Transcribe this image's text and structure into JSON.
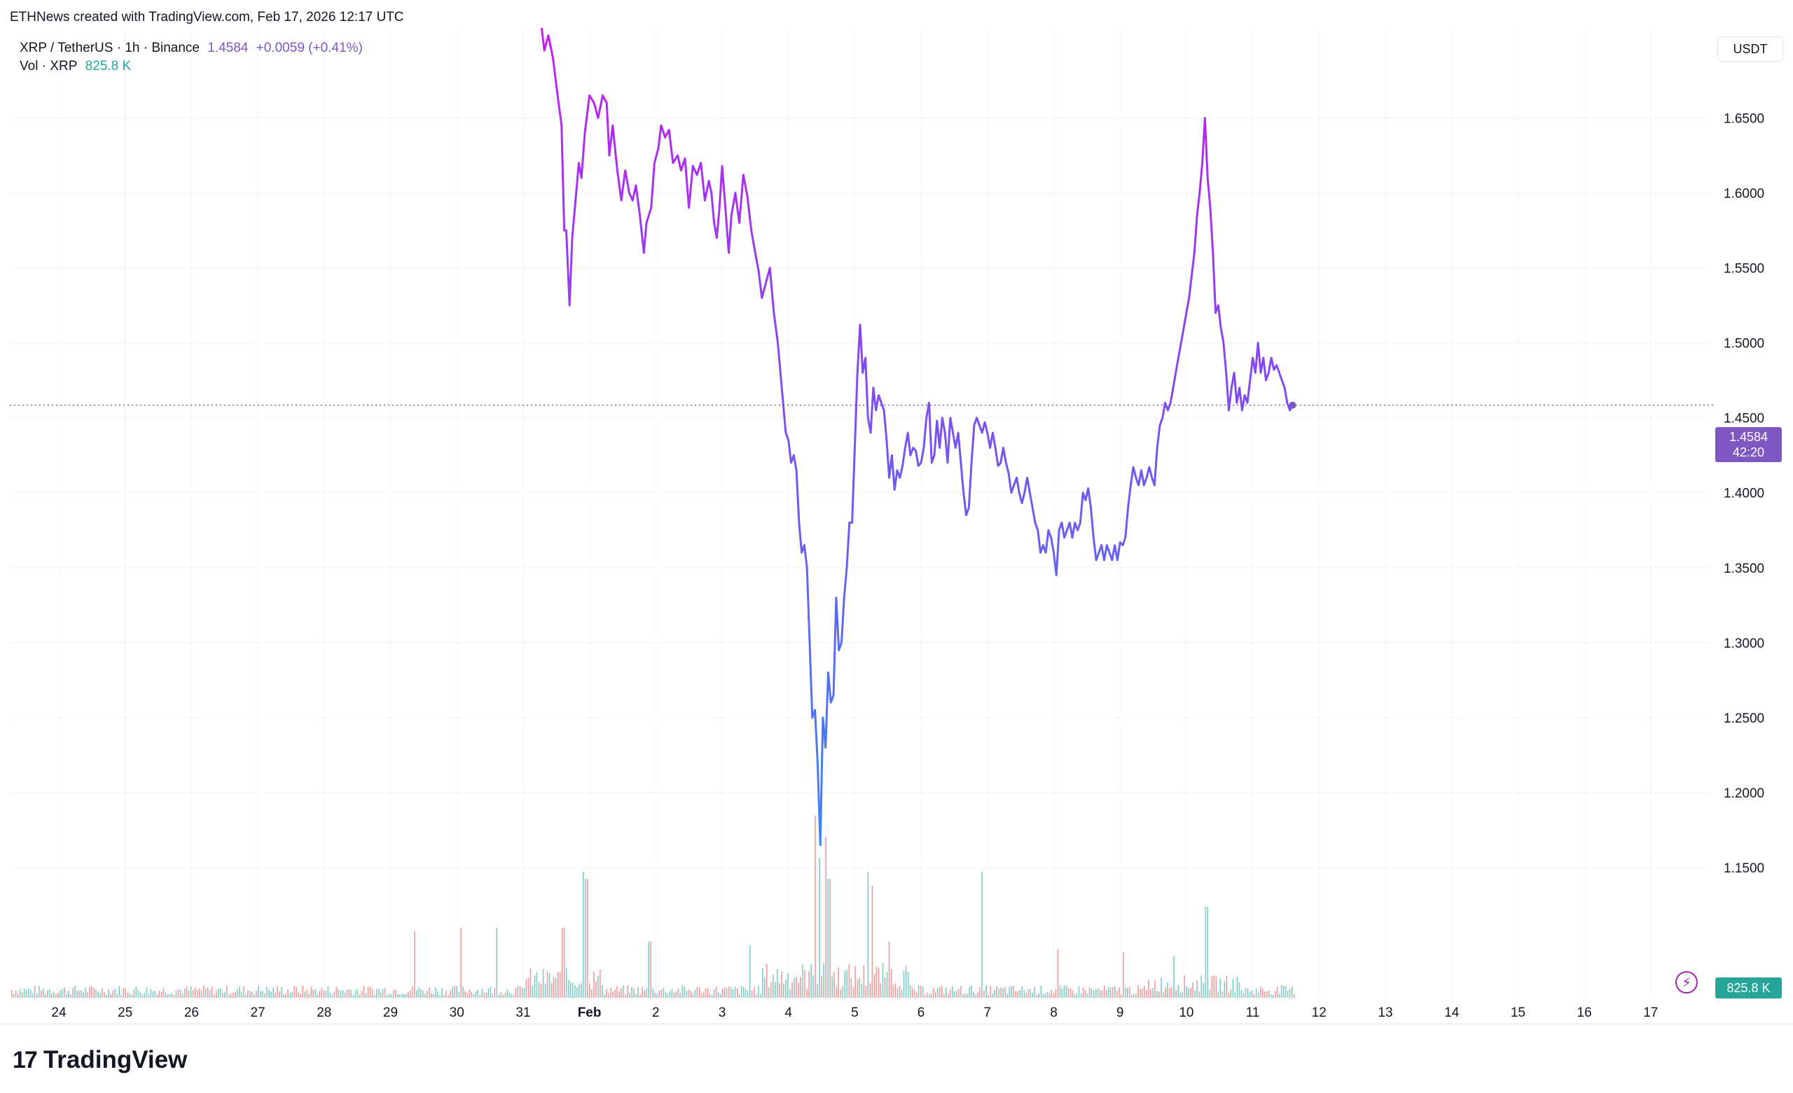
{
  "header": {
    "credit": "ETHNews created with TradingView.com, Feb 17, 2026 12:17 UTC",
    "symbol": "XRP / TetherUS · 1h · Binance",
    "last_price": "1.4584",
    "change": "+0.0059 (+0.41%)",
    "vol_label": "Vol · XRP",
    "vol_value": "825.8 K"
  },
  "price_axis": {
    "unit": "USDT",
    "current_price": "1.4584",
    "countdown": "42:20",
    "volume_tag": "825.8 K"
  },
  "brand": {
    "logo": "17",
    "name": "TradingView"
  },
  "icons": {
    "alert": "lightning-icon",
    "logo": "tradingview-logo-icon"
  },
  "colors": {
    "line_top": "#c51cf2",
    "line_bottom": "#2f8ef2",
    "line_mid": "#7b50f0",
    "vol_up": "#26a69a",
    "vol_down": "#ef5350",
    "tag": "#7e57c2"
  },
  "chart_data": {
    "type": "line",
    "title": "XRP / TetherUS · 1h · Binance",
    "ylabel": "USDT",
    "ylim": [
      1.1,
      1.71
    ],
    "yticks": [
      "1.1500",
      "1.2000",
      "1.2500",
      "1.3000",
      "1.3500",
      "1.4000",
      "1.4500",
      "1.5000",
      "1.5500",
      "1.6000",
      "1.6500"
    ],
    "xticks": [
      "24",
      "25",
      "26",
      "27",
      "28",
      "29",
      "30",
      "31",
      "Feb",
      "2",
      "3",
      "4",
      "5",
      "6",
      "7",
      "8",
      "9",
      "10",
      "11",
      "12",
      "13",
      "14",
      "15",
      "16",
      "17"
    ],
    "grid": true,
    "current_price_line": 1.4584,
    "x_unit": "days from Jan 24 label",
    "series": [
      {
        "values": [
          [
            7.28,
            1.71
          ],
          [
            7.32,
            1.695
          ],
          [
            7.38,
            1.705
          ],
          [
            7.45,
            1.69
          ],
          [
            7.52,
            1.665
          ],
          [
            7.58,
            1.645
          ],
          [
            7.62,
            1.575
          ],
          [
            7.65,
            1.575
          ],
          [
            7.7,
            1.525
          ],
          [
            7.74,
            1.57
          ],
          [
            7.78,
            1.59
          ],
          [
            7.84,
            1.62
          ],
          [
            7.88,
            1.61
          ],
          [
            7.93,
            1.64
          ],
          [
            8.0,
            1.665
          ],
          [
            8.07,
            1.66
          ],
          [
            8.13,
            1.65
          ],
          [
            8.2,
            1.665
          ],
          [
            8.26,
            1.66
          ],
          [
            8.3,
            1.625
          ],
          [
            8.35,
            1.645
          ],
          [
            8.42,
            1.615
          ],
          [
            8.48,
            1.595
          ],
          [
            8.54,
            1.615
          ],
          [
            8.6,
            1.6
          ],
          [
            8.65,
            1.595
          ],
          [
            8.7,
            1.605
          ],
          [
            8.76,
            1.585
          ],
          [
            8.82,
            1.56
          ],
          [
            8.86,
            1.58
          ],
          [
            8.93,
            1.59
          ],
          [
            8.98,
            1.62
          ],
          [
            9.04,
            1.63
          ],
          [
            9.08,
            1.645
          ],
          [
            9.14,
            1.637
          ],
          [
            9.2,
            1.642
          ],
          [
            9.26,
            1.62
          ],
          [
            9.33,
            1.625
          ],
          [
            9.38,
            1.615
          ],
          [
            9.44,
            1.623
          ],
          [
            9.5,
            1.59
          ],
          [
            9.56,
            1.618
          ],
          [
            9.62,
            1.612
          ],
          [
            9.68,
            1.62
          ],
          [
            9.74,
            1.595
          ],
          [
            9.8,
            1.608
          ],
          [
            9.84,
            1.6
          ],
          [
            9.88,
            1.58
          ],
          [
            9.92,
            1.57
          ],
          [
            9.96,
            1.59
          ],
          [
            10.0,
            1.618
          ],
          [
            10.05,
            1.59
          ],
          [
            10.1,
            1.56
          ],
          [
            10.14,
            1.585
          ],
          [
            10.2,
            1.6
          ],
          [
            10.26,
            1.58
          ],
          [
            10.32,
            1.612
          ],
          [
            10.38,
            1.598
          ],
          [
            10.44,
            1.575
          ],
          [
            10.5,
            1.56
          ],
          [
            10.55,
            1.548
          ],
          [
            10.6,
            1.53
          ],
          [
            10.66,
            1.54
          ],
          [
            10.72,
            1.55
          ],
          [
            10.78,
            1.52
          ],
          [
            10.84,
            1.5
          ],
          [
            10.88,
            1.48
          ],
          [
            10.92,
            1.46
          ],
          [
            10.96,
            1.44
          ],
          [
            11.0,
            1.435
          ],
          [
            11.04,
            1.42
          ],
          [
            11.08,
            1.425
          ],
          [
            11.12,
            1.415
          ],
          [
            11.16,
            1.38
          ],
          [
            11.2,
            1.36
          ],
          [
            11.24,
            1.365
          ],
          [
            11.28,
            1.35
          ],
          [
            11.32,
            1.3
          ],
          [
            11.36,
            1.25
          ],
          [
            11.4,
            1.255
          ],
          [
            11.44,
            1.22
          ],
          [
            11.48,
            1.165
          ],
          [
            11.52,
            1.25
          ],
          [
            11.56,
            1.23
          ],
          [
            11.6,
            1.28
          ],
          [
            11.64,
            1.26
          ],
          [
            11.68,
            1.265
          ],
          [
            11.72,
            1.33
          ],
          [
            11.76,
            1.295
          ],
          [
            11.8,
            1.3
          ],
          [
            11.84,
            1.33
          ],
          [
            11.88,
            1.35
          ],
          [
            11.92,
            1.38
          ],
          [
            11.96,
            1.38
          ],
          [
            12.0,
            1.43
          ],
          [
            12.04,
            1.48
          ],
          [
            12.08,
            1.512
          ],
          [
            12.12,
            1.48
          ],
          [
            12.16,
            1.49
          ],
          [
            12.2,
            1.45
          ],
          [
            12.24,
            1.44
          ],
          [
            12.28,
            1.47
          ],
          [
            12.32,
            1.455
          ],
          [
            12.36,
            1.465
          ],
          [
            12.4,
            1.46
          ],
          [
            12.44,
            1.455
          ],
          [
            12.48,
            1.435
          ],
          [
            12.52,
            1.41
          ],
          [
            12.56,
            1.425
          ],
          [
            12.6,
            1.402
          ],
          [
            12.64,
            1.415
          ],
          [
            12.68,
            1.41
          ],
          [
            12.72,
            1.418
          ],
          [
            12.76,
            1.43
          ],
          [
            12.8,
            1.44
          ],
          [
            12.84,
            1.425
          ],
          [
            12.88,
            1.43
          ],
          [
            12.92,
            1.428
          ],
          [
            12.96,
            1.418
          ],
          [
            13.0,
            1.42
          ],
          [
            13.04,
            1.43
          ],
          [
            13.08,
            1.45
          ],
          [
            13.12,
            1.46
          ],
          [
            13.16,
            1.42
          ],
          [
            13.2,
            1.425
          ],
          [
            13.24,
            1.448
          ],
          [
            13.28,
            1.43
          ],
          [
            13.32,
            1.45
          ],
          [
            13.36,
            1.44
          ],
          [
            13.4,
            1.42
          ],
          [
            13.44,
            1.45
          ],
          [
            13.48,
            1.44
          ],
          [
            13.52,
            1.43
          ],
          [
            13.56,
            1.44
          ],
          [
            13.6,
            1.42
          ],
          [
            13.64,
            1.4
          ],
          [
            13.68,
            1.385
          ],
          [
            13.72,
            1.39
          ],
          [
            13.76,
            1.42
          ],
          [
            13.8,
            1.445
          ],
          [
            13.84,
            1.45
          ],
          [
            13.88,
            1.445
          ],
          [
            13.92,
            1.44
          ],
          [
            13.96,
            1.447
          ],
          [
            14.0,
            1.44
          ],
          [
            14.04,
            1.43
          ],
          [
            14.08,
            1.44
          ],
          [
            14.12,
            1.43
          ],
          [
            14.16,
            1.418
          ],
          [
            14.2,
            1.42
          ],
          [
            14.24,
            1.43
          ],
          [
            14.28,
            1.42
          ],
          [
            14.32,
            1.413
          ],
          [
            14.36,
            1.4
          ],
          [
            14.4,
            1.405
          ],
          [
            14.44,
            1.41
          ],
          [
            14.48,
            1.4
          ],
          [
            14.52,
            1.393
          ],
          [
            14.56,
            1.4
          ],
          [
            14.6,
            1.41
          ],
          [
            14.64,
            1.4
          ],
          [
            14.68,
            1.39
          ],
          [
            14.72,
            1.38
          ],
          [
            14.76,
            1.375
          ],
          [
            14.8,
            1.36
          ],
          [
            14.84,
            1.365
          ],
          [
            14.88,
            1.36
          ],
          [
            14.92,
            1.375
          ],
          [
            14.96,
            1.37
          ],
          [
            15.0,
            1.36
          ],
          [
            15.04,
            1.345
          ],
          [
            15.08,
            1.375
          ],
          [
            15.12,
            1.38
          ],
          [
            15.16,
            1.37
          ],
          [
            15.2,
            1.375
          ],
          [
            15.24,
            1.38
          ],
          [
            15.28,
            1.37
          ],
          [
            15.32,
            1.38
          ],
          [
            15.36,
            1.375
          ],
          [
            15.4,
            1.38
          ],
          [
            15.44,
            1.4
          ],
          [
            15.48,
            1.395
          ],
          [
            15.52,
            1.403
          ],
          [
            15.56,
            1.39
          ],
          [
            15.6,
            1.37
          ],
          [
            15.64,
            1.355
          ],
          [
            15.68,
            1.36
          ],
          [
            15.72,
            1.365
          ],
          [
            15.76,
            1.355
          ],
          [
            15.8,
            1.365
          ],
          [
            15.84,
            1.36
          ],
          [
            15.88,
            1.355
          ],
          [
            15.92,
            1.365
          ],
          [
            15.96,
            1.355
          ],
          [
            16.0,
            1.367
          ],
          [
            16.04,
            1.365
          ],
          [
            16.08,
            1.37
          ],
          [
            16.12,
            1.39
          ],
          [
            16.16,
            1.405
          ],
          [
            16.2,
            1.417
          ],
          [
            16.24,
            1.41
          ],
          [
            16.28,
            1.405
          ],
          [
            16.32,
            1.415
          ],
          [
            16.36,
            1.405
          ],
          [
            16.4,
            1.41
          ],
          [
            16.44,
            1.417
          ],
          [
            16.48,
            1.41
          ],
          [
            16.52,
            1.405
          ],
          [
            16.56,
            1.43
          ],
          [
            16.6,
            1.445
          ],
          [
            16.64,
            1.45
          ],
          [
            16.68,
            1.46
          ],
          [
            16.72,
            1.455
          ],
          [
            16.76,
            1.46
          ],
          [
            16.8,
            1.47
          ],
          [
            16.84,
            1.48
          ],
          [
            16.88,
            1.49
          ],
          [
            16.92,
            1.5
          ],
          [
            16.96,
            1.51
          ],
          [
            17.0,
            1.52
          ],
          [
            17.04,
            1.53
          ],
          [
            17.08,
            1.545
          ],
          [
            17.12,
            1.56
          ],
          [
            17.16,
            1.585
          ],
          [
            17.2,
            1.6
          ],
          [
            17.24,
            1.62
          ],
          [
            17.28,
            1.65
          ],
          [
            17.32,
            1.61
          ],
          [
            17.36,
            1.59
          ],
          [
            17.4,
            1.56
          ],
          [
            17.44,
            1.52
          ],
          [
            17.48,
            1.525
          ],
          [
            17.52,
            1.51
          ],
          [
            17.56,
            1.5
          ],
          [
            17.6,
            1.48
          ],
          [
            17.64,
            1.455
          ],
          [
            17.68,
            1.47
          ],
          [
            17.72,
            1.48
          ],
          [
            17.76,
            1.46
          ],
          [
            17.8,
            1.47
          ],
          [
            17.84,
            1.455
          ],
          [
            17.88,
            1.465
          ],
          [
            17.92,
            1.46
          ],
          [
            17.96,
            1.475
          ],
          [
            18.0,
            1.49
          ],
          [
            18.04,
            1.48
          ],
          [
            18.08,
            1.5
          ],
          [
            18.12,
            1.48
          ],
          [
            18.16,
            1.49
          ],
          [
            18.2,
            1.475
          ],
          [
            18.24,
            1.48
          ],
          [
            18.28,
            1.49
          ],
          [
            18.32,
            1.482
          ],
          [
            18.36,
            1.485
          ],
          [
            18.4,
            1.48
          ],
          [
            18.44,
            1.475
          ],
          [
            18.48,
            1.47
          ],
          [
            18.52,
            1.46
          ],
          [
            18.56,
            1.455
          ],
          [
            18.6,
            1.4584
          ]
        ]
      }
    ]
  }
}
